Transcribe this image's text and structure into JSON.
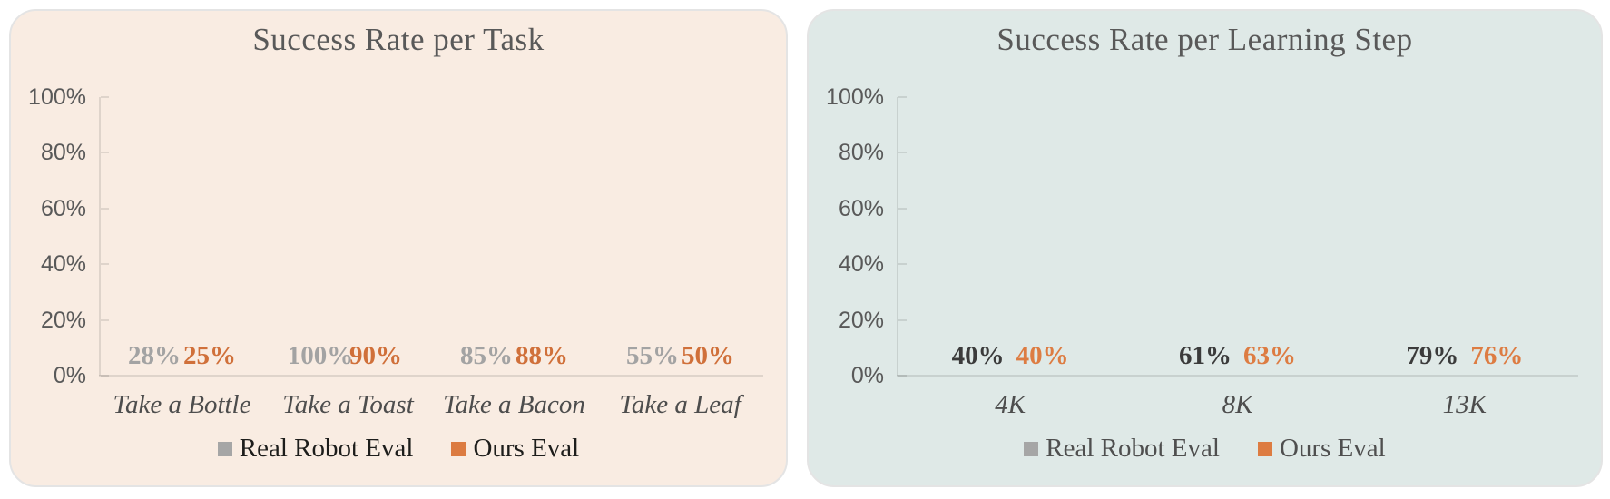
{
  "chart_data": [
    {
      "type": "bar",
      "title": "Success Rate per Task",
      "categories": [
        "Take a Bottle",
        "Take a Toast",
        "Take a Bacon",
        "Take a Leaf"
      ],
      "series": [
        {
          "name": "Real Robot Eval",
          "values": [
            28,
            100,
            85,
            55
          ],
          "color": "#a6a6a6",
          "data_label_color": "#a3a3a3"
        },
        {
          "name": "Ours Eval",
          "values": [
            25,
            90,
            88,
            50
          ],
          "color": "#dc7b41",
          "data_label_color": "#d0703a"
        }
      ],
      "data_label_format": "{v}%",
      "y_tick_labels": [
        "0%",
        "20%",
        "40%",
        "60%",
        "80%",
        "100%"
      ],
      "ylim": [
        0,
        100
      ],
      "grid": false,
      "legend_position": "bottom",
      "panel_bg": "#f9ece2",
      "legend_text_color": "#1d1d1b",
      "axis_text_color": "#595959"
    },
    {
      "type": "bar",
      "title": "Success Rate per Learning Step",
      "categories": [
        "4K",
        "8K",
        "13K"
      ],
      "series": [
        {
          "name": "Real Robot Eval",
          "values": [
            40,
            61,
            79
          ],
          "color": "#a6a6a6",
          "data_label_color": "#3b3b3b"
        },
        {
          "name": "Ours Eval",
          "values": [
            40,
            63,
            76
          ],
          "color": "#dd7c42",
          "data_label_color": "#dd7c42"
        }
      ],
      "data_label_format": "{v}%",
      "y_tick_labels": [
        "0%",
        "20%",
        "40%",
        "60%",
        "80%",
        "100%"
      ],
      "ylim": [
        0,
        100
      ],
      "grid": false,
      "legend_position": "bottom",
      "panel_bg": "#dfe9e7",
      "legend_text_color": "#4f4f4f",
      "axis_text_color": "#595959"
    }
  ]
}
